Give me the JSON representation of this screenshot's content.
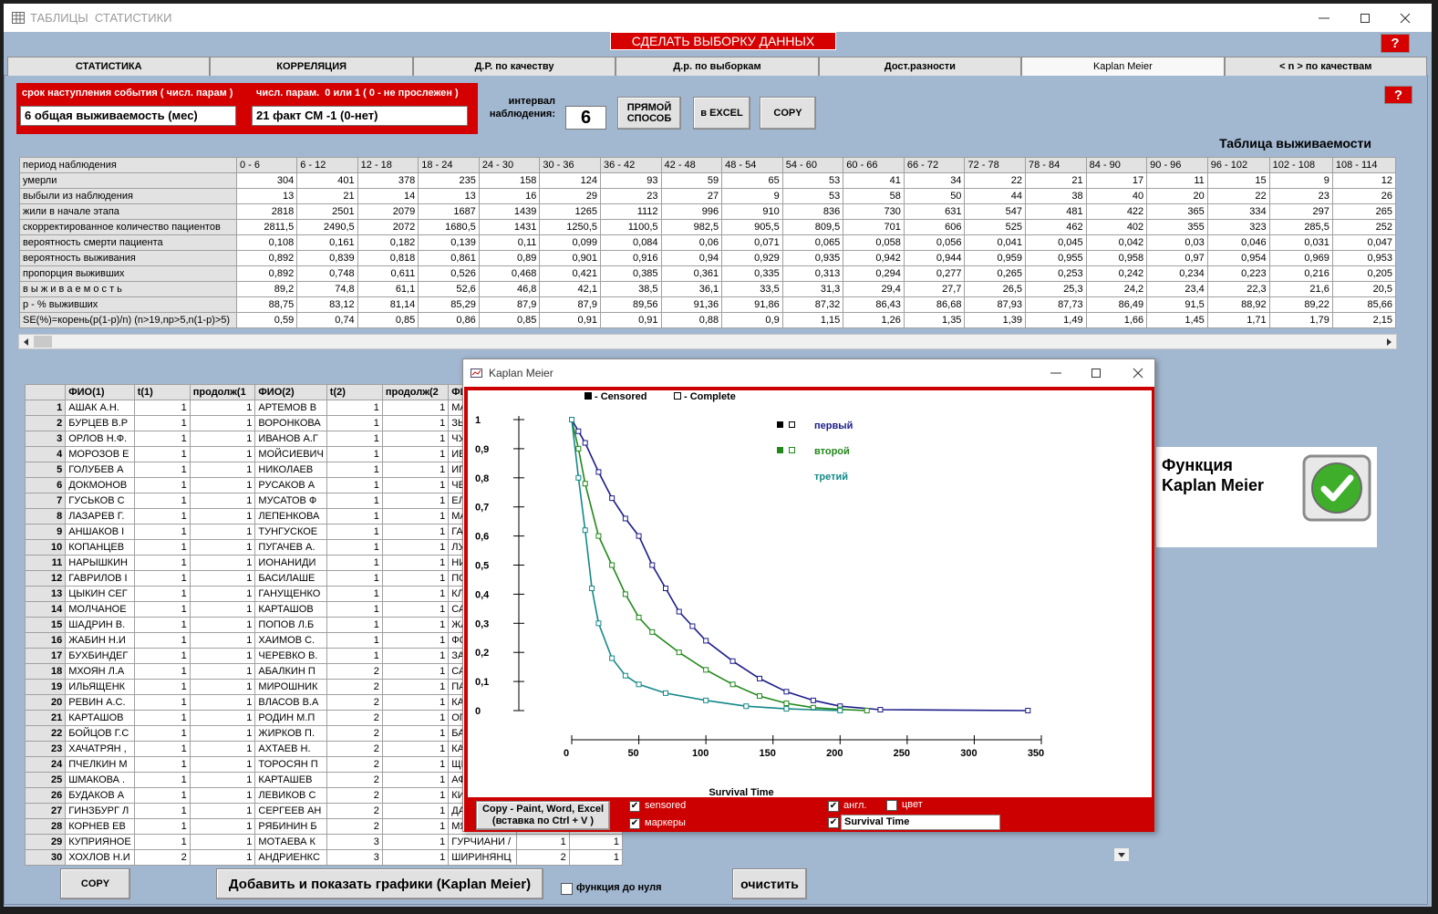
{
  "window": {
    "title": "ТАБЛИЦЫ  СТАТИСТИКИ"
  },
  "toolbar": {
    "sample_button": "СДЕЛАТЬ ВЫБОРКУ ДАННЫХ",
    "help": "?"
  },
  "tabs": {
    "items": [
      "СТАТИСТИКА",
      "КОРРЕЛЯЦИЯ",
      "Д.Р. по качеству",
      "Д.р. по выборкам",
      "Дост.разности",
      "Kaplan Meier",
      "< n > по качествам"
    ],
    "selected": 5
  },
  "params": {
    "event_time_label": "срок наступления события ( числ. парам )",
    "event_time_value": "6 общая выживаемость (мес)",
    "status_label": "числ. парам.  0 или 1 ( 0 - не прослежен )",
    "status_value": "21 факт СМ -1 (0-нет)",
    "interval_label": [
      "интервал",
      "наблюдения:"
    ],
    "interval_value": 6,
    "direct_button": [
      "ПРЯМОЙ",
      "СПОСОБ"
    ],
    "excel_button": "в EXCEL",
    "copy_button": "COPY",
    "help": "?"
  },
  "survival_table": {
    "title": "Таблица выживаемости",
    "header": [
      "период наблюдения",
      "0 - 6",
      "6 - 12",
      "12 - 18",
      "18 - 24",
      "24 - 30",
      "30 - 36",
      "36 - 42",
      "42 - 48",
      "48 - 54",
      "54 - 60",
      "60 - 66",
      "66 - 72",
      "72 - 78",
      "78 - 84",
      "84 - 90",
      "90 - 96",
      "96 - 102",
      "102 - 108",
      "108 - 114"
    ],
    "rows": [
      [
        "умерли",
        "304",
        "401",
        "378",
        "235",
        "158",
        "124",
        "93",
        "59",
        "65",
        "53",
        "41",
        "34",
        "22",
        "21",
        "17",
        "11",
        "15",
        "9",
        "12"
      ],
      [
        "выбыли из наблюдения",
        "13",
        "21",
        "14",
        "13",
        "16",
        "29",
        "23",
        "27",
        "9",
        "53",
        "58",
        "50",
        "44",
        "38",
        "40",
        "20",
        "22",
        "23",
        "26"
      ],
      [
        "жили в начале этапа",
        "2818",
        "2501",
        "2079",
        "1687",
        "1439",
        "1265",
        "1112",
        "996",
        "910",
        "836",
        "730",
        "631",
        "547",
        "481",
        "422",
        "365",
        "334",
        "297",
        "265"
      ],
      [
        "скорректированное количество пациентов",
        "2811,5",
        "2490,5",
        "2072",
        "1680,5",
        "1431",
        "1250,5",
        "1100,5",
        "982,5",
        "905,5",
        "809,5",
        "701",
        "606",
        "525",
        "462",
        "402",
        "355",
        "323",
        "285,5",
        "252"
      ],
      [
        "вероятность смерти пациента",
        "0,108",
        "0,161",
        "0,182",
        "0,139",
        "0,11",
        "0,099",
        "0,084",
        "0,06",
        "0,071",
        "0,065",
        "0,058",
        "0,056",
        "0,041",
        "0,045",
        "0,042",
        "0,03",
        "0,046",
        "0,031",
        "0,047"
      ],
      [
        "вероятность выживания",
        "0,892",
        "0,839",
        "0,818",
        "0,861",
        "0,89",
        "0,901",
        "0,916",
        "0,94",
        "0,929",
        "0,935",
        "0,942",
        "0,944",
        "0,959",
        "0,955",
        "0,958",
        "0,97",
        "0,954",
        "0,969",
        "0,953"
      ],
      [
        "пропорция выживших",
        "0,892",
        "0,748",
        "0,611",
        "0,526",
        "0,468",
        "0,421",
        "0,385",
        "0,361",
        "0,335",
        "0,313",
        "0,294",
        "0,277",
        "0,265",
        "0,253",
        "0,242",
        "0,234",
        "0,223",
        "0,216",
        "0,205"
      ],
      [
        "в ы ж и в а е м о с т ь",
        "89,2",
        "74,8",
        "61,1",
        "52,6",
        "46,8",
        "42,1",
        "38,5",
        "36,1",
        "33,5",
        "31,3",
        "29,4",
        "27,7",
        "26,5",
        "25,3",
        "24,2",
        "23,4",
        "22,3",
        "21,6",
        "20,5"
      ],
      [
        " р - % выживших",
        "88,75",
        "83,12",
        "81,14",
        "85,29",
        "87,9",
        "87,9",
        "89,56",
        "91,36",
        "91,86",
        "87,32",
        "86,43",
        "86,68",
        "87,93",
        "87,73",
        "86,49",
        "91,5",
        "88,92",
        "89,22",
        "85,66"
      ],
      [
        "SE(%)=корень(p(1-p)/n) (n>19,np>5,n(1-p)>5)",
        "0,59",
        "0,74",
        "0,85",
        "0,86",
        "0,85",
        "0,91",
        "0,91",
        "0,88",
        "0,9",
        "1,15",
        "1,26",
        "1,35",
        "1,39",
        "1,49",
        "1,66",
        "1,45",
        "1,71",
        "1,79",
        "2,15"
      ]
    ]
  },
  "patients_table": {
    "headers": [
      "ФИО(1)",
      "t(1)",
      "продолж(1",
      "ФИО(2)",
      "t(2)",
      "продолж(2",
      "ФИО"
    ],
    "rows": [
      [
        1,
        "АШАК А.Н.",
        1,
        1,
        "АРТЕМОВ В",
        1,
        1,
        "МАХ"
      ],
      [
        2,
        "БУРЦЕВ В.Р",
        1,
        1,
        "ВОРОНКОВА",
        1,
        1,
        "ЗЫК"
      ],
      [
        3,
        "ОРЛОВ Н.Ф.",
        1,
        1,
        "ИВАНОВ А.Г",
        1,
        1,
        "ЧУЛ"
      ],
      [
        4,
        "МОРОЗОВ Е",
        1,
        1,
        "МОЙСИЕВИЧ",
        1,
        1,
        "ИВАН"
      ],
      [
        5,
        "ГОЛУБЕВ А",
        1,
        1,
        "НИКОЛАЕВ",
        1,
        1,
        "ИГНА"
      ],
      [
        6,
        "ДОКМОНОВ",
        1,
        1,
        "РУСАКОВ А",
        1,
        1,
        "ЧЕЧІ"
      ],
      [
        7,
        "ГУСЬКОВ  С",
        1,
        1,
        "МУСАТОВ Ф",
        1,
        1,
        "ЕЛИН"
      ],
      [
        8,
        "ЛАЗАРЕВ Г.",
        1,
        1,
        "ЛЕПЕНКОВА",
        1,
        1,
        "МАК"
      ],
      [
        9,
        "АНШАКОВ І",
        1,
        1,
        "ТУНГУСКОЕ",
        1,
        1,
        "ГАВР"
      ],
      [
        10,
        "КОПАНЦЕВ",
        1,
        1,
        "ПУГАЧЕВ А.",
        1,
        1,
        "ЛУЦ"
      ],
      [
        11,
        "НАРЫШКИН",
        1,
        1,
        "ИОНАНИДИ",
        1,
        1,
        "НИКС"
      ],
      [
        12,
        "ГАВРИЛОВ І",
        1,
        1,
        "БАСИЛАШЕ",
        1,
        1,
        "ПОП"
      ],
      [
        13,
        "ЦЫКИН СЕГ",
        1,
        1,
        "ГАНУЩЕНКО",
        1,
        1,
        "КЛЕЕ"
      ],
      [
        14,
        "МОЛЧАНОЕ",
        1,
        1,
        "КАРТАШОВ",
        1,
        1,
        "САР"
      ],
      [
        15,
        "ШАДРИН В.",
        1,
        1,
        "ПОПОВ Л.Б",
        1,
        1,
        "ЖАР"
      ],
      [
        16,
        "ЖАБИН Н.И",
        1,
        1,
        "ХАИМОВ С.",
        1,
        1,
        "ФОС"
      ],
      [
        17,
        "БУХБИНДЕГ",
        1,
        1,
        "ЧЕРЕВКО В.",
        1,
        1,
        "ЗАГ"
      ],
      [
        18,
        "МХОЯН Л.А",
        1,
        1,
        "АБАЛКИН П",
        2,
        1,
        "САРА"
      ],
      [
        19,
        "ИЛЬЯЩЕНК",
        1,
        1,
        "МИРОШНИК",
        2,
        1,
        "ПАН"
      ],
      [
        20,
        "РЕВИН А.С.",
        1,
        1,
        "ВЛАСОВ В.А",
        2,
        1,
        "КАРІ"
      ],
      [
        21,
        "КАРТАШОВ",
        1,
        1,
        "РОДИН М.П",
        2,
        1,
        "ОГАН"
      ],
      [
        22,
        "БОЙЦОВ Г.С",
        1,
        1,
        "ЖИРКОВ П.",
        2,
        1,
        "БАБ"
      ],
      [
        23,
        "ХАЧАТРЯН ,",
        1,
        1,
        "АХТАЕВ Н.",
        2,
        1,
        "КАРГ"
      ],
      [
        24,
        "ПЧЕЛКИН М",
        1,
        1,
        "ТОРОСЯН П",
        2,
        1,
        "ЩЕР"
      ],
      [
        25,
        "ШМАКОВА .",
        1,
        1,
        "КАРТАШЕВ",
        2,
        1,
        "АФО"
      ],
      [
        26,
        "БУДАКОВ А",
        1,
        1,
        "ЛЕВИКОВ С",
        2,
        1,
        "КИРІ"
      ],
      [
        27,
        "ГИНЗБУРГ Л",
        1,
        1,
        "СЕРГЕЕВ АН",
        2,
        1,
        "ДАВ"
      ],
      [
        28,
        "КОРНЕВ ЕВ",
        1,
        1,
        "РЯБИНИН Б",
        2,
        1,
        "МЯГ"
      ],
      [
        29,
        "КУПРИЯНОЕ",
        1,
        1,
        "МОТАЕВА К",
        3,
        1,
        "ГУРЧИАНИ /",
        1,
        1
      ],
      [
        30,
        "ХОХЛОВ Н.И",
        2,
        1,
        "АНДРИЕНКС",
        3,
        1,
        "ШИРИНЯНЦ",
        2,
        1
      ]
    ]
  },
  "chart_window": {
    "title": "Kaplan Meier"
  },
  "chart_data": {
    "type": "line",
    "legend_markers": [
      "- Censored",
      "- Complete"
    ],
    "xlabel": "Survival Time",
    "xlim": [
      0,
      350
    ],
    "xticks": [
      0,
      50,
      100,
      150,
      200,
      250,
      300,
      350
    ],
    "ylim": [
      0,
      1
    ],
    "yticks": [
      0,
      {
        "value": 0.1,
        "label": "0,1"
      },
      {
        "value": 0.2,
        "label": "0,2"
      },
      {
        "value": 0.3,
        "label": "0,3"
      },
      {
        "value": 0.4,
        "label": "0,4"
      },
      {
        "value": 0.5,
        "label": "0,5"
      },
      {
        "value": 0.6,
        "label": "0,6"
      },
      {
        "value": 0.7,
        "label": "0,7"
      },
      {
        "value": 0.8,
        "label": "0,8"
      },
      {
        "value": 0.9,
        "label": "0,9"
      },
      1
    ],
    "series": [
      {
        "name": "первый",
        "color": "#1c1c8a",
        "x": [
          0,
          5,
          10,
          20,
          30,
          40,
          50,
          60,
          70,
          80,
          90,
          100,
          120,
          140,
          160,
          180,
          200,
          230,
          340
        ],
        "values": [
          1,
          0.96,
          0.92,
          0.82,
          0.73,
          0.66,
          0.6,
          0.5,
          0.42,
          0.34,
          0.29,
          0.24,
          0.17,
          0.11,
          0.065,
          0.035,
          0.015,
          0.003,
          0
        ]
      },
      {
        "name": "второй",
        "color": "#22881a",
        "x": [
          0,
          5,
          10,
          20,
          30,
          40,
          50,
          60,
          80,
          100,
          120,
          140,
          160,
          180,
          200,
          220
        ],
        "values": [
          1,
          0.9,
          0.78,
          0.6,
          0.5,
          0.4,
          0.32,
          0.27,
          0.2,
          0.14,
          0.09,
          0.05,
          0.025,
          0.01,
          0.004,
          0
        ]
      },
      {
        "name": "третий",
        "color": "#148888",
        "x": [
          0,
          5,
          10,
          15,
          20,
          30,
          40,
          50,
          70,
          100,
          130,
          160,
          200
        ],
        "values": [
          1,
          0.8,
          0.62,
          0.42,
          0.3,
          0.18,
          0.12,
          0.09,
          0.06,
          0.035,
          0.015,
          0.006,
          0
        ]
      }
    ]
  },
  "chart_options": {
    "copy_button": [
      "Copy - Paint, Word, Excel",
      "(вставка по Ctrl + V )"
    ],
    "checkboxes": [
      {
        "label": "sensored",
        "checked": true
      },
      {
        "label": "маркеры",
        "checked": true
      },
      {
        "label": "англ.",
        "checked": true
      },
      {
        "label": "цвет",
        "checked": false
      }
    ],
    "axis_title_input": "Survival Time"
  },
  "function_panel": {
    "title": [
      "Функция",
      "Kaplan Meier"
    ]
  },
  "footer": {
    "copy_button": "COPY",
    "add_button": "Добавить и показать графики (Kaplan Meier)",
    "to_zero": {
      "label": "функция до нуля",
      "checked": false
    },
    "clear_button": "очистить"
  }
}
